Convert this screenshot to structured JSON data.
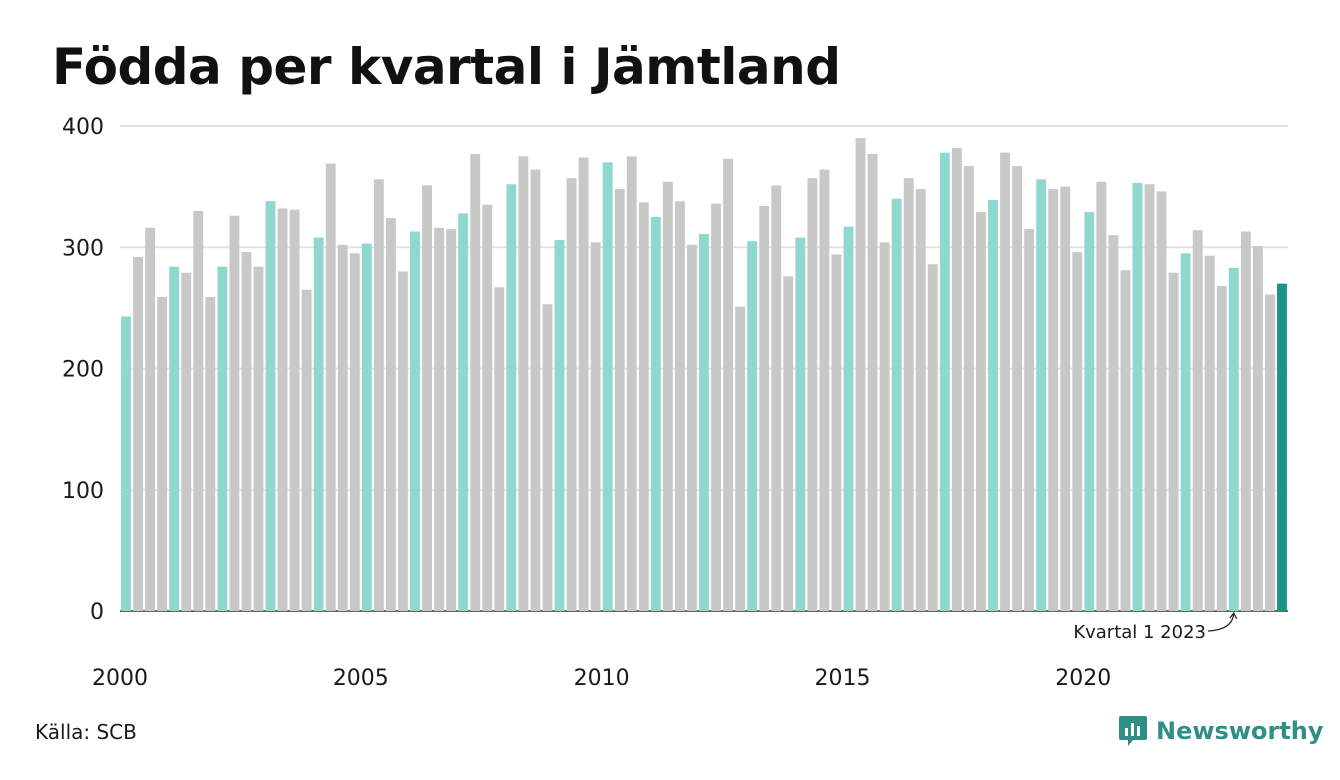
{
  "chart_data": {
    "type": "bar",
    "title": "Födda per kvartal i Jämtland",
    "xlabel": "",
    "ylabel": "",
    "ylim": [
      0,
      400
    ],
    "y_ticks": [
      "0",
      "100",
      "200",
      "300",
      "400"
    ],
    "x_tick_labels": [
      {
        "label": "2000",
        "index": 0
      },
      {
        "label": "2005",
        "index": 20
      },
      {
        "label": "2010",
        "index": 40
      },
      {
        "label": "2015",
        "index": 60
      },
      {
        "label": "2020",
        "index": 80
      }
    ],
    "grid": true,
    "colors": {
      "quarter1": "#8fd8d0",
      "other": "#c8c8c8",
      "latest": "#1a9485",
      "grid": "#e3e3e3",
      "axis": "#333333"
    },
    "values": [
      243,
      292,
      316,
      259,
      284,
      279,
      330,
      259,
      284,
      326,
      296,
      284,
      338,
      332,
      331,
      265,
      308,
      369,
      302,
      295,
      303,
      356,
      324,
      280,
      313,
      351,
      316,
      315,
      328,
      377,
      335,
      267,
      352,
      375,
      364,
      253,
      306,
      357,
      374,
      304,
      370,
      348,
      375,
      337,
      325,
      354,
      338,
      302,
      311,
      336,
      373,
      251,
      305,
      334,
      351,
      276,
      308,
      357,
      364,
      294,
      317,
      390,
      377,
      304,
      340,
      357,
      348,
      286,
      378,
      382,
      367,
      329,
      339,
      378,
      367,
      315,
      356,
      348,
      350,
      296,
      329,
      354,
      310,
      281,
      353,
      352,
      346,
      279,
      295,
      314,
      293,
      268,
      283,
      313,
      301,
      261,
      270
    ],
    "annotation": {
      "text": "Kvartal 1 2023",
      "index": 92
    }
  },
  "source": "Källa: SCB",
  "brand": {
    "name": "Newsworthy",
    "icon": "newsworthy-chart-icon"
  }
}
